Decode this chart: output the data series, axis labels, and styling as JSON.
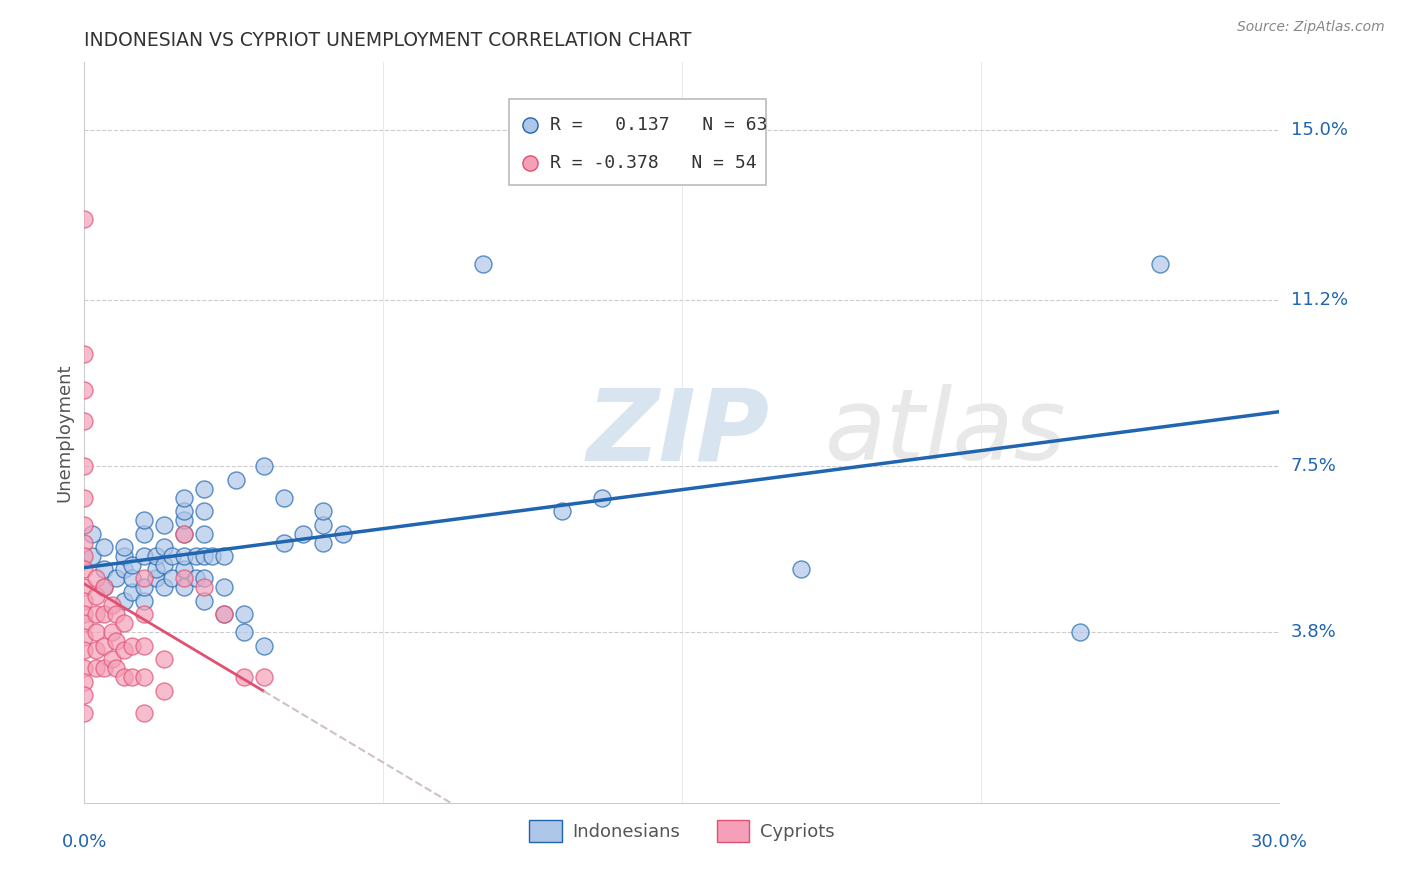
{
  "title": "INDONESIAN VS CYPRIOT UNEMPLOYMENT CORRELATION CHART",
  "source": "Source: ZipAtlas.com",
  "ylabel": "Unemployment",
  "yticks": [
    0.038,
    0.075,
    0.112,
    0.15
  ],
  "ytick_labels": [
    "3.8%",
    "7.5%",
    "11.2%",
    "15.0%"
  ],
  "xmin": 0.0,
  "xmax": 0.3,
  "ymin": 0.0,
  "ymax": 0.165,
  "legend_r1_color": "#2065b0",
  "legend_r2_color": "#e05070",
  "indonesian_color": "#aec6e8",
  "cypriot_color": "#f4a0b8",
  "trendline_indonesian_color": "#2065b0",
  "trendline_cypriot_color": "#e05070",
  "trendline_cypriot_dashed_color": "#d0c0c8",
  "watermark_zip": "ZIP",
  "watermark_atlas": "atlas",
  "indonesian_points": [
    [
      0.002,
      0.055
    ],
    [
      0.002,
      0.06
    ],
    [
      0.005,
      0.048
    ],
    [
      0.005,
      0.052
    ],
    [
      0.005,
      0.057
    ],
    [
      0.008,
      0.05
    ],
    [
      0.01,
      0.045
    ],
    [
      0.01,
      0.052
    ],
    [
      0.01,
      0.055
    ],
    [
      0.01,
      0.057
    ],
    [
      0.012,
      0.047
    ],
    [
      0.012,
      0.05
    ],
    [
      0.012,
      0.053
    ],
    [
      0.015,
      0.045
    ],
    [
      0.015,
      0.048
    ],
    [
      0.015,
      0.055
    ],
    [
      0.015,
      0.06
    ],
    [
      0.015,
      0.063
    ],
    [
      0.018,
      0.05
    ],
    [
      0.018,
      0.052
    ],
    [
      0.018,
      0.055
    ],
    [
      0.02,
      0.048
    ],
    [
      0.02,
      0.053
    ],
    [
      0.02,
      0.057
    ],
    [
      0.02,
      0.062
    ],
    [
      0.022,
      0.05
    ],
    [
      0.022,
      0.055
    ],
    [
      0.025,
      0.048
    ],
    [
      0.025,
      0.052
    ],
    [
      0.025,
      0.055
    ],
    [
      0.025,
      0.06
    ],
    [
      0.025,
      0.063
    ],
    [
      0.025,
      0.065
    ],
    [
      0.025,
      0.068
    ],
    [
      0.028,
      0.05
    ],
    [
      0.028,
      0.055
    ],
    [
      0.03,
      0.045
    ],
    [
      0.03,
      0.05
    ],
    [
      0.03,
      0.055
    ],
    [
      0.03,
      0.06
    ],
    [
      0.03,
      0.065
    ],
    [
      0.03,
      0.07
    ],
    [
      0.032,
      0.055
    ],
    [
      0.035,
      0.042
    ],
    [
      0.035,
      0.048
    ],
    [
      0.035,
      0.055
    ],
    [
      0.038,
      0.072
    ],
    [
      0.04,
      0.038
    ],
    [
      0.04,
      0.042
    ],
    [
      0.045,
      0.035
    ],
    [
      0.045,
      0.075
    ],
    [
      0.05,
      0.058
    ],
    [
      0.05,
      0.068
    ],
    [
      0.055,
      0.06
    ],
    [
      0.06,
      0.058
    ],
    [
      0.06,
      0.062
    ],
    [
      0.06,
      0.065
    ],
    [
      0.065,
      0.06
    ],
    [
      0.1,
      0.12
    ],
    [
      0.12,
      0.065
    ],
    [
      0.13,
      0.068
    ],
    [
      0.18,
      0.052
    ],
    [
      0.25,
      0.038
    ],
    [
      0.27,
      0.12
    ]
  ],
  "cypriot_points": [
    [
      0.0,
      0.13
    ],
    [
      0.0,
      0.1
    ],
    [
      0.0,
      0.092
    ],
    [
      0.0,
      0.085
    ],
    [
      0.0,
      0.075
    ],
    [
      0.0,
      0.068
    ],
    [
      0.0,
      0.062
    ],
    [
      0.0,
      0.058
    ],
    [
      0.0,
      0.055
    ],
    [
      0.0,
      0.052
    ],
    [
      0.0,
      0.048
    ],
    [
      0.0,
      0.045
    ],
    [
      0.0,
      0.042
    ],
    [
      0.0,
      0.04
    ],
    [
      0.0,
      0.037
    ],
    [
      0.0,
      0.034
    ],
    [
      0.0,
      0.03
    ],
    [
      0.0,
      0.027
    ],
    [
      0.0,
      0.024
    ],
    [
      0.0,
      0.02
    ],
    [
      0.003,
      0.05
    ],
    [
      0.003,
      0.046
    ],
    [
      0.003,
      0.042
    ],
    [
      0.003,
      0.038
    ],
    [
      0.003,
      0.034
    ],
    [
      0.003,
      0.03
    ],
    [
      0.005,
      0.048
    ],
    [
      0.005,
      0.042
    ],
    [
      0.005,
      0.035
    ],
    [
      0.005,
      0.03
    ],
    [
      0.007,
      0.044
    ],
    [
      0.007,
      0.038
    ],
    [
      0.007,
      0.032
    ],
    [
      0.008,
      0.042
    ],
    [
      0.008,
      0.036
    ],
    [
      0.008,
      0.03
    ],
    [
      0.01,
      0.04
    ],
    [
      0.01,
      0.034
    ],
    [
      0.01,
      0.028
    ],
    [
      0.012,
      0.035
    ],
    [
      0.012,
      0.028
    ],
    [
      0.015,
      0.05
    ],
    [
      0.015,
      0.042
    ],
    [
      0.015,
      0.035
    ],
    [
      0.015,
      0.028
    ],
    [
      0.015,
      0.02
    ],
    [
      0.02,
      0.032
    ],
    [
      0.02,
      0.025
    ],
    [
      0.025,
      0.06
    ],
    [
      0.025,
      0.05
    ],
    [
      0.03,
      0.048
    ],
    [
      0.035,
      0.042
    ],
    [
      0.04,
      0.028
    ],
    [
      0.045,
      0.028
    ]
  ]
}
